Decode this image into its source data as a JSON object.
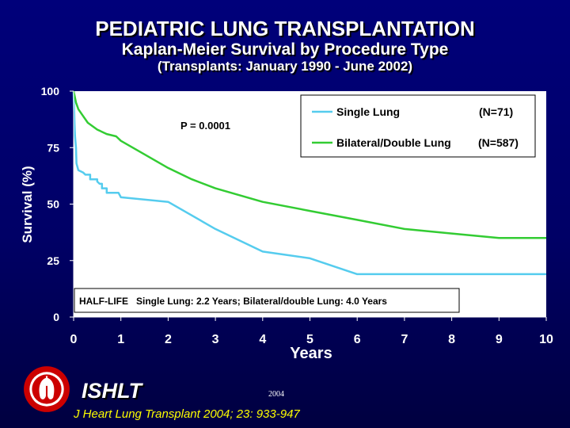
{
  "header": {
    "title": "PEDIATRIC LUNG TRANSPLANTATION",
    "subtitle": "Kaplan-Meier Survival by Procedure Type",
    "subtitle2": "(Transplants: January 1990 - June 2002)"
  },
  "chart_data": {
    "type": "line",
    "xlabel": "Years",
    "ylabel": "Survival (%)",
    "xlim": [
      0,
      10
    ],
    "ylim": [
      0,
      100
    ],
    "x_ticks": [
      0,
      1,
      2,
      3,
      4,
      5,
      6,
      7,
      8,
      9,
      10
    ],
    "y_ticks": [
      0,
      25,
      50,
      75,
      100
    ],
    "grid": false,
    "legend_position": "top-right",
    "p_value_label": "P = 0.0001",
    "half_life_label": "HALF-LIFE   Single Lung: 2.2 Years; Bilateral/double Lung: 4.0 Years",
    "series": [
      {
        "name": "Single Lung",
        "n_label": "(N=71)",
        "color": "#55ccee",
        "points": [
          [
            0,
            100
          ],
          [
            0.02,
            85
          ],
          [
            0.03,
            80
          ],
          [
            0.05,
            75
          ],
          [
            0.06,
            68
          ],
          [
            0.1,
            65
          ],
          [
            0.2,
            64
          ],
          [
            0.25,
            63
          ],
          [
            0.35,
            63
          ],
          [
            0.35,
            61
          ],
          [
            0.5,
            61
          ],
          [
            0.5,
            60
          ],
          [
            0.55,
            59
          ],
          [
            0.6,
            59
          ],
          [
            0.6,
            57
          ],
          [
            0.7,
            57
          ],
          [
            0.7,
            55
          ],
          [
            0.95,
            55
          ],
          [
            1.0,
            53
          ],
          [
            2.0,
            51
          ],
          [
            3.0,
            39
          ],
          [
            4.0,
            29
          ],
          [
            5.0,
            26
          ],
          [
            6.0,
            19
          ],
          [
            10.0,
            19
          ]
        ]
      },
      {
        "name": "Bilateral/Double Lung",
        "n_label": "(N=587)",
        "color": "#33cc33",
        "points": [
          [
            0,
            100
          ],
          [
            0.05,
            95
          ],
          [
            0.1,
            92
          ],
          [
            0.2,
            89
          ],
          [
            0.3,
            86
          ],
          [
            0.5,
            83
          ],
          [
            0.7,
            81
          ],
          [
            0.9,
            80
          ],
          [
            1.0,
            78
          ],
          [
            1.5,
            72
          ],
          [
            2.0,
            66
          ],
          [
            2.5,
            61
          ],
          [
            3.0,
            57
          ],
          [
            4.0,
            51
          ],
          [
            5.0,
            47
          ],
          [
            6.0,
            43
          ],
          [
            7.0,
            39
          ],
          [
            8.0,
            37
          ],
          [
            9.0,
            35
          ],
          [
            10.0,
            35
          ]
        ]
      }
    ]
  },
  "footer": {
    "org": "ISHLT",
    "year": "2004",
    "citation": "J Heart Lung Transplant 2004; 23: 933-947"
  },
  "colors": {
    "background": "#000066",
    "plot_area": "#ffffff",
    "text": "#ffffff",
    "citation": "#ffff00",
    "logo": "#cc0000"
  }
}
